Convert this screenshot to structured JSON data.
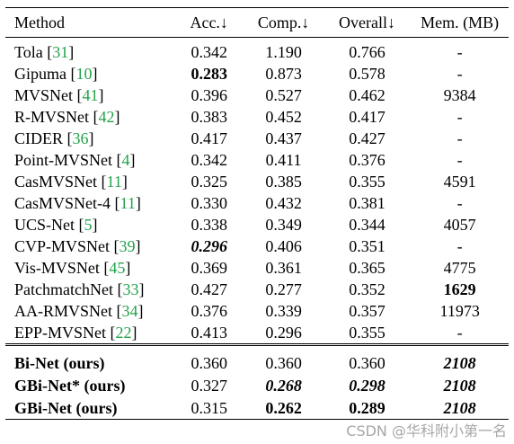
{
  "columns": {
    "method": "Method",
    "acc": "Acc.↓",
    "comp": "Comp.↓",
    "overall": "Overall↓",
    "mem": "Mem. (MB)"
  },
  "rows": [
    {
      "name": "Tola",
      "cite": "31",
      "acc": "0.342",
      "comp": "1.190",
      "overall": "0.766",
      "mem": "-"
    },
    {
      "name": "Gipuma",
      "cite": "10",
      "acc": "0.283",
      "comp": "0.873",
      "overall": "0.578",
      "mem": "-"
    },
    {
      "name": "MVSNet",
      "cite": "41",
      "acc": "0.396",
      "comp": "0.527",
      "overall": "0.462",
      "mem": "9384"
    },
    {
      "name": "R-MVSNet",
      "cite": "42",
      "acc": "0.383",
      "comp": "0.452",
      "overall": "0.417",
      "mem": "-"
    },
    {
      "name": "CIDER",
      "cite": "36",
      "acc": "0.417",
      "comp": "0.437",
      "overall": "0.427",
      "mem": "-"
    },
    {
      "name": "Point-MVSNet",
      "cite": "4",
      "acc": "0.342",
      "comp": "0.411",
      "overall": "0.376",
      "mem": "-"
    },
    {
      "name": "CasMVSNet",
      "cite": "11",
      "acc": "0.325",
      "comp": "0.385",
      "overall": "0.355",
      "mem": "4591"
    },
    {
      "name": "CasMVSNet-4",
      "cite": "11",
      "acc": "0.330",
      "comp": "0.432",
      "overall": "0.381",
      "mem": "-"
    },
    {
      "name": "UCS-Net",
      "cite": "5",
      "acc": "0.338",
      "comp": "0.349",
      "overall": "0.344",
      "mem": "4057"
    },
    {
      "name": "CVP-MVSNet",
      "cite": "39",
      "acc": "0.296",
      "comp": "0.406",
      "overall": "0.351",
      "mem": "-"
    },
    {
      "name": "Vis-MVSNet",
      "cite": "45",
      "acc": "0.369",
      "comp": "0.361",
      "overall": "0.365",
      "mem": "4775"
    },
    {
      "name": "PatchmatchNet",
      "cite": "33",
      "acc": "0.427",
      "comp": "0.277",
      "overall": "0.352",
      "mem": "1629"
    },
    {
      "name": "AA-RMVSNet",
      "cite": "34",
      "acc": "0.376",
      "comp": "0.339",
      "overall": "0.357",
      "mem": "11973"
    },
    {
      "name": "EPP-MVSNet",
      "cite": "22",
      "acc": "0.413",
      "comp": "0.296",
      "overall": "0.355",
      "mem": "-"
    }
  ],
  "ours": [
    {
      "name": "Bi-Net (ours)",
      "acc": "0.360",
      "comp": "0.360",
      "overall": "0.360",
      "mem": "2108"
    },
    {
      "name": "GBi-Net* (ours)",
      "acc": "0.327",
      "comp": "0.268",
      "overall": "0.298",
      "mem": "2108"
    },
    {
      "name": "GBi-Net (ours)",
      "acc": "0.315",
      "comp": "0.262",
      "overall": "0.289",
      "mem": "2108"
    }
  ],
  "watermark": "CSDN @华科附小第一名",
  "colors": {
    "citation": "#22a34a"
  }
}
